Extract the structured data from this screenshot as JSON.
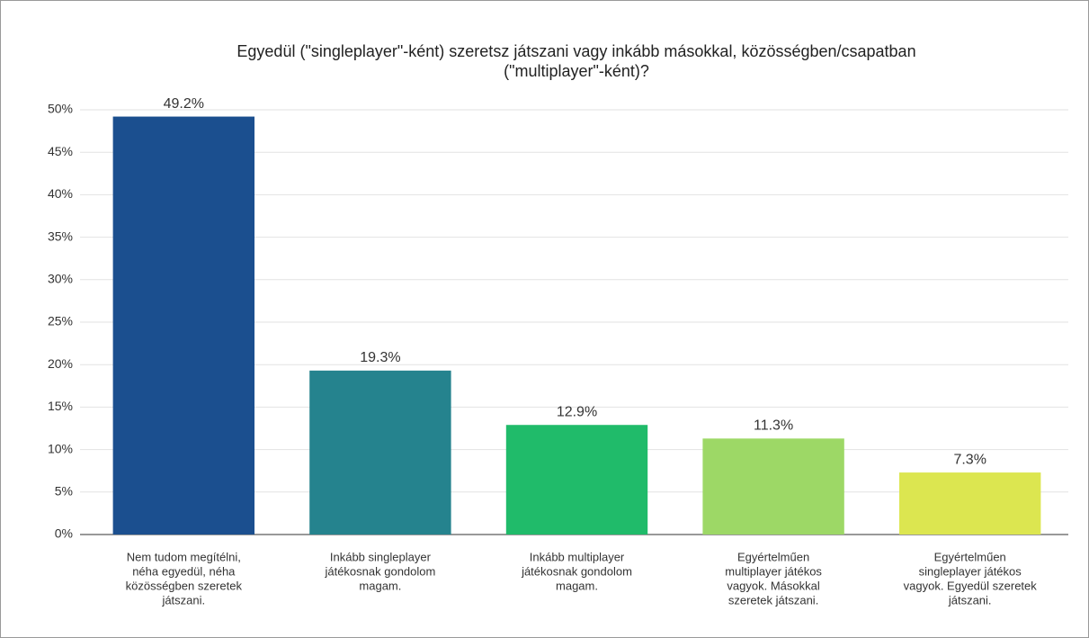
{
  "chart_data": {
    "type": "bar",
    "title": [
      "Egyedül (\"singleplayer\"-ként) szeretsz játszani vagy inkább másokkal, közösségben/csapatban",
      "(\"multiplayer\"-ként)?"
    ],
    "categories": [
      [
        "Nem tudom megítélni,",
        "néha egyedül, néha",
        "közösségben szeretek",
        "játszani."
      ],
      [
        "Inkább singleplayer",
        "játékosnak gondolom",
        "magam."
      ],
      [
        "Inkább multiplayer",
        "játékosnak gondolom",
        "magam."
      ],
      [
        "Egyértelműen",
        "multiplayer játékos",
        "vagyok. Másokkal",
        "szeretek játszani."
      ],
      [
        "Egyértelműen",
        "singleplayer játékos",
        "vagyok. Egyedül szeretek",
        "játszani."
      ]
    ],
    "values": [
      49.2,
      19.3,
      12.9,
      11.3,
      7.3
    ],
    "value_labels": [
      "49.2%",
      "19.3%",
      "12.9%",
      "11.3%",
      "7.3%"
    ],
    "colors": [
      "#1b4f8f",
      "#25838e",
      "#20bb6a",
      "#9dd866",
      "#dce650"
    ],
    "ylim": [
      0,
      50
    ],
    "yticks": [
      {
        "value": 0,
        "label": "0%"
      },
      {
        "value": 5,
        "label": "5%"
      },
      {
        "value": 10,
        "label": "10%"
      },
      {
        "value": 15,
        "label": "15%"
      },
      {
        "value": 20,
        "label": "20%"
      },
      {
        "value": 25,
        "label": "25%"
      },
      {
        "value": 30,
        "label": "30%"
      },
      {
        "value": 35,
        "label": "35%"
      },
      {
        "value": 40,
        "label": "40%"
      },
      {
        "value": 45,
        "label": "45%"
      },
      {
        "value": 50,
        "label": "50%"
      }
    ],
    "grid": true
  }
}
